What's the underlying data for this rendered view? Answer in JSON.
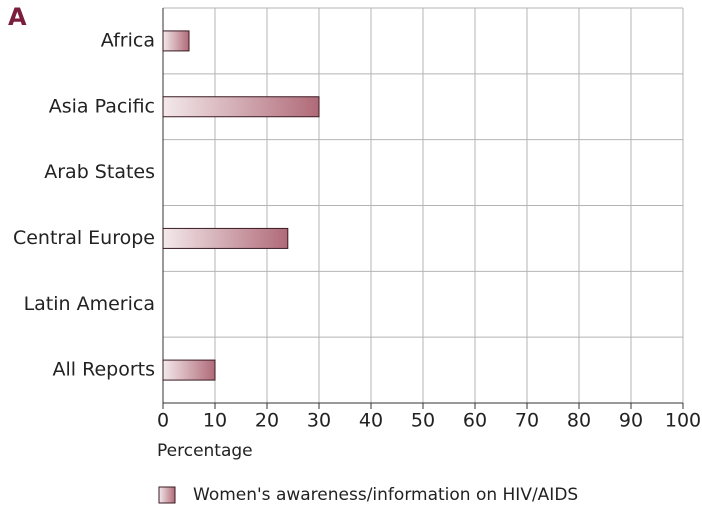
{
  "chart_data": {
    "type": "hbar",
    "title": "A",
    "categories": [
      "Africa",
      "Asia Pacific",
      "Arab States",
      "Central Europe",
      "Latin America",
      "All Reports"
    ],
    "series": [
      {
        "name": "Women's awareness/information on HIV/AIDS",
        "color": "#b06a78",
        "values": [
          5,
          30,
          0,
          24,
          0,
          10
        ]
      }
    ],
    "xlabel": "Percentage",
    "xlim": [
      0,
      100
    ],
    "xticks": [
      0,
      10,
      20,
      30,
      40,
      50,
      60,
      70,
      80,
      90,
      100
    ],
    "grid": true
  }
}
